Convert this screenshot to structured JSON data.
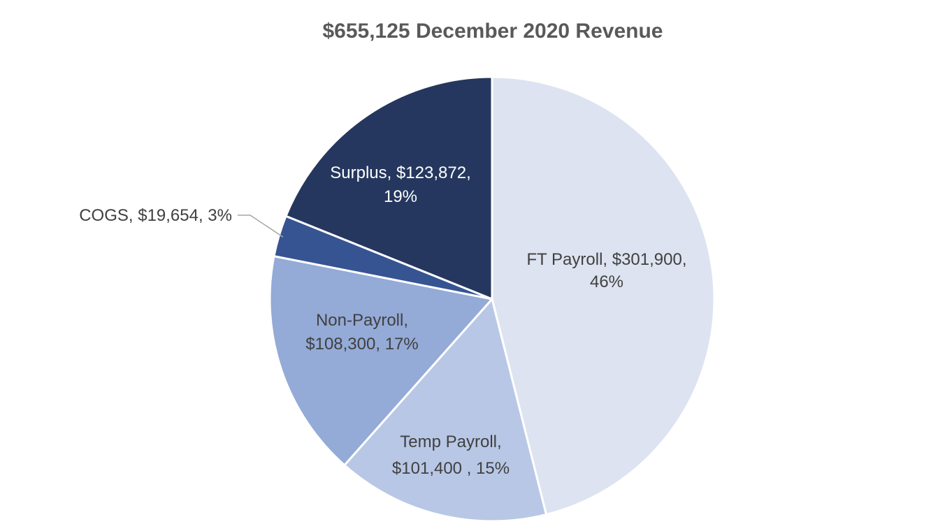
{
  "chart_data": {
    "type": "pie",
    "title": "$655,125 December 2020 Revenue",
    "slices": [
      {
        "name": "FT Payroll",
        "value": 301900,
        "percent": 46,
        "color": "#dde3f0",
        "label_color": "#404040",
        "label_lines": [
          "FT Payroll, $301,900,",
          "46%"
        ]
      },
      {
        "name": "Temp Payroll",
        "value": 101400,
        "percent": 15,
        "color": "#b8c7e5",
        "label_color": "#404040",
        "label_lines": [
          "Temp Payroll,",
          "$101,400 , 15%"
        ]
      },
      {
        "name": "Non-Payroll",
        "value": 108300,
        "percent": 17,
        "color": "#94aad7",
        "label_color": "#404040",
        "label_lines": [
          "Non-Payroll,",
          "$108,300, 17%"
        ]
      },
      {
        "name": "COGS",
        "value": 19654,
        "percent": 3,
        "color": "#375492",
        "label_color": "#404040",
        "label_lines": [
          "COGS, $19,654, 3%"
        ]
      },
      {
        "name": "Surplus",
        "value": 123872,
        "percent": 19,
        "color": "#25375e",
        "label_color": "#ffffff",
        "label_lines": [
          "Surplus, $123,872,",
          "19%"
        ]
      }
    ],
    "start_angle": "12 o'clock",
    "direction": "clockwise",
    "legend": "none"
  }
}
